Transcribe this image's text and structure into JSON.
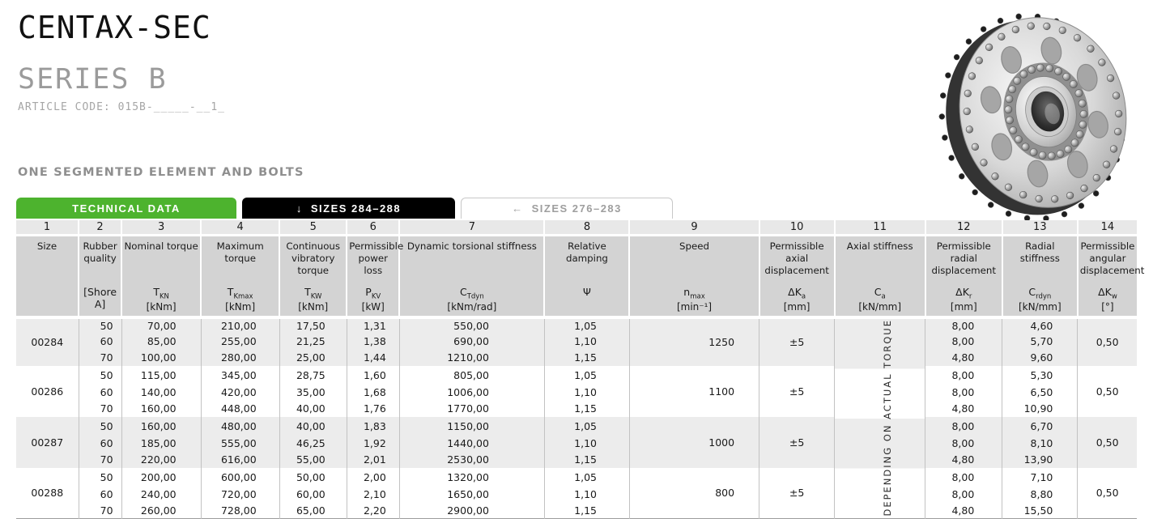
{
  "header": {
    "title": "CENTAX-SEC",
    "subtitle": "SERIES B",
    "article_code": "ARTICLE CODE: 015B-_____-__1_",
    "section_label": "ONE SEGMENTED ELEMENT AND BOLTS"
  },
  "tabs": [
    {
      "label": "TECHNICAL DATA",
      "icon": "",
      "active": true
    },
    {
      "label": "SIZES 284–288",
      "icon": "↓",
      "active": true
    },
    {
      "label": "SIZES 276–283",
      "icon": "←",
      "active": false
    }
  ],
  "colors": {
    "accent_green": "#4db32e",
    "tab_black": "#000000",
    "band_gray": "#ececec",
    "header_gray": "#d3d3d3",
    "number_row_gray": "#e8e8e8"
  },
  "table": {
    "columns": [
      {
        "num": "1",
        "name": "Size",
        "symbol": "",
        "sub": "",
        "unit": ""
      },
      {
        "num": "2",
        "name": "Rubber quality",
        "symbol": "[Shore A]",
        "sub": "",
        "unit": ""
      },
      {
        "num": "3",
        "name": "Nominal torque",
        "symbol": "T",
        "sub": "KN",
        "unit": "[kNm]"
      },
      {
        "num": "4",
        "name": "Maximum torque",
        "symbol": "T",
        "sub": "Kmax",
        "unit": "[kNm]"
      },
      {
        "num": "5",
        "name": "Continuous vibratory torque",
        "symbol": "T",
        "sub": "KW",
        "unit": "[kNm]"
      },
      {
        "num": "6",
        "name": "Permissible power loss",
        "symbol": "P",
        "sub": "KV",
        "unit": "[kW]"
      },
      {
        "num": "7",
        "name": "Dynamic torsional stiffness",
        "symbol": "C",
        "sub": "Tdyn",
        "unit": "[kNm/rad]"
      },
      {
        "num": "8",
        "name": "Relative damping",
        "symbol": "Ψ",
        "sub": "",
        "unit": ""
      },
      {
        "num": "9",
        "name": "Speed",
        "symbol": "n",
        "sub": "max",
        "unit": "[min⁻¹]"
      },
      {
        "num": "10",
        "name": "Permissible axial displacement",
        "symbol": "ΔK",
        "sub": "a",
        "unit": "[mm]"
      },
      {
        "num": "11",
        "name": "Axial stiffness",
        "symbol": "C",
        "sub": "a",
        "unit": "[kN/mm]"
      },
      {
        "num": "12",
        "name": "Permissible radial displacement",
        "symbol": "ΔK",
        "sub": "r",
        "unit": "[mm]"
      },
      {
        "num": "13",
        "name": "Radial stiffness",
        "symbol": "C",
        "sub": "rdyn",
        "unit": "[kN/mm]"
      },
      {
        "num": "14",
        "name": "Permissible angular displacement",
        "symbol": "ΔK",
        "sub": "w",
        "unit": "[°]"
      }
    ],
    "stiffness_note": "DEPENDING ON ACTUAL TORQUE",
    "groups": [
      {
        "size": "00284",
        "speed": "1250",
        "axial_displacement": "±5",
        "angular_displacement": "0,50",
        "rows": [
          [
            "50",
            "70,00",
            "210,00",
            "17,50",
            "1,31",
            "550,00",
            "1,05",
            "8,00",
            "4,60"
          ],
          [
            "60",
            "85,00",
            "255,00",
            "21,25",
            "1,38",
            "690,00",
            "1,10",
            "8,00",
            "5,70"
          ],
          [
            "70",
            "100,00",
            "280,00",
            "25,00",
            "1,44",
            "1210,00",
            "1,15",
            "4,80",
            "9,60"
          ]
        ]
      },
      {
        "size": "00286",
        "speed": "1100",
        "axial_displacement": "±5",
        "angular_displacement": "0,50",
        "rows": [
          [
            "50",
            "115,00",
            "345,00",
            "28,75",
            "1,60",
            "805,00",
            "1,05",
            "8,00",
            "5,30"
          ],
          [
            "60",
            "140,00",
            "420,00",
            "35,00",
            "1,68",
            "1006,00",
            "1,10",
            "8,00",
            "6,50"
          ],
          [
            "70",
            "160,00",
            "448,00",
            "40,00",
            "1,76",
            "1770,00",
            "1,15",
            "4,80",
            "10,90"
          ]
        ]
      },
      {
        "size": "00287",
        "speed": "1000",
        "axial_displacement": "±5",
        "angular_displacement": "0,50",
        "rows": [
          [
            "50",
            "160,00",
            "480,00",
            "40,00",
            "1,83",
            "1150,00",
            "1,05",
            "8,00",
            "6,70"
          ],
          [
            "60",
            "185,00",
            "555,00",
            "46,25",
            "1,92",
            "1440,00",
            "1,10",
            "8,00",
            "8,10"
          ],
          [
            "70",
            "220,00",
            "616,00",
            "55,00",
            "2,01",
            "2530,00",
            "1,15",
            "4,80",
            "13,90"
          ]
        ]
      },
      {
        "size": "00288",
        "speed": "800",
        "axial_displacement": "±5",
        "angular_displacement": "0,50",
        "rows": [
          [
            "50",
            "200,00",
            "600,00",
            "50,00",
            "2,00",
            "1320,00",
            "1,05",
            "8,00",
            "7,10"
          ],
          [
            "60",
            "240,00",
            "720,00",
            "60,00",
            "2,10",
            "1650,00",
            "1,10",
            "8,00",
            "8,80"
          ],
          [
            "70",
            "260,00",
            "728,00",
            "65,00",
            "2,20",
            "2900,00",
            "1,15",
            "4,80",
            "15,50"
          ]
        ]
      }
    ]
  }
}
